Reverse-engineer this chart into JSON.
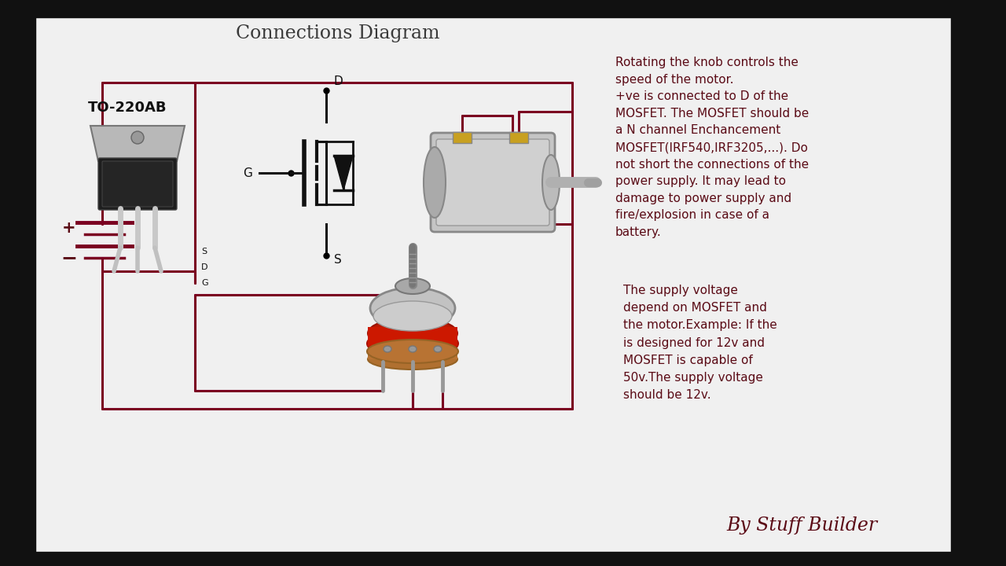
{
  "title": "Connections Diagram",
  "title_color": "#3a3a3a",
  "title_fontsize": 17,
  "bg_color": "#f0f0f0",
  "wire_color": "#7a0020",
  "wire_lw": 2.2,
  "symbol_color": "#111111",
  "mosfet_label": "TO-220AB",
  "annotation1": "Rotating the knob controls the\nspeed of the motor.\n+ve is connected to D of the\nMOSFET. The MOSFET should be\na N channel Enchancement\nMOSFET(IRF540,IRF3205,...). Do\nnot short the connections of the\npower supply. It may lead to\ndamage to power supply and\nfire/explosion in case of a\nbattery.",
  "annotation2": "The supply voltage\ndepend on MOSFET and\nthe motor.Example: If the\nis designed for 12v and\nMOSFET is capable of\n50v.The supply voltage\nshould be 12v.",
  "by_text": "By Stuff Builder",
  "black_bar_color": "#111111",
  "annot_color": "#5a0a15"
}
